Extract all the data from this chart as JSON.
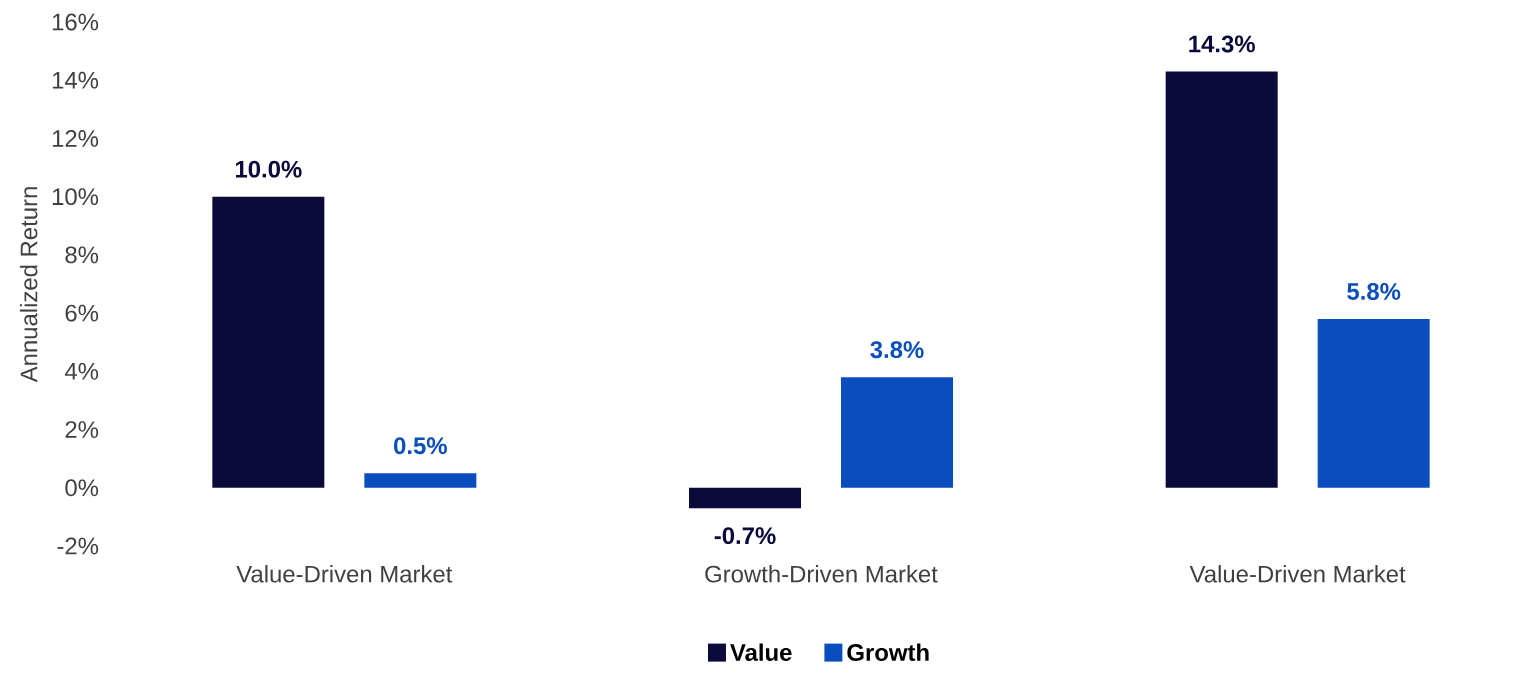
{
  "chart_data": {
    "type": "bar",
    "ylabel": "Annualized Return",
    "categories": [
      "Value-Driven Market",
      "Growth-Driven Market",
      "Value-Driven Market"
    ],
    "series": [
      {
        "name": "Value",
        "color": "#0b0b3b",
        "values": [
          10.0,
          -0.7,
          14.3
        ],
        "value_labels": [
          "10.0%",
          "-0.7%",
          "14.3%"
        ]
      },
      {
        "name": "Growth",
        "color": "#0a4ebd",
        "values": [
          0.5,
          3.8,
          5.8
        ],
        "value_labels": [
          "0.5%",
          "3.8%",
          "5.8%"
        ]
      }
    ],
    "ylim": [
      -2,
      16
    ],
    "yticks": [
      {
        "value": -2,
        "label": "-2%"
      },
      {
        "value": 0,
        "label": "0%"
      },
      {
        "value": 2,
        "label": "2%"
      },
      {
        "value": 4,
        "label": "4%"
      },
      {
        "value": 6,
        "label": "6%"
      },
      {
        "value": 8,
        "label": "8%"
      },
      {
        "value": 10,
        "label": "10%"
      },
      {
        "value": 12,
        "label": "12%"
      },
      {
        "value": 14,
        "label": "14%"
      },
      {
        "value": 16,
        "label": "16%"
      }
    ],
    "grid": false,
    "legend": "bottom"
  }
}
